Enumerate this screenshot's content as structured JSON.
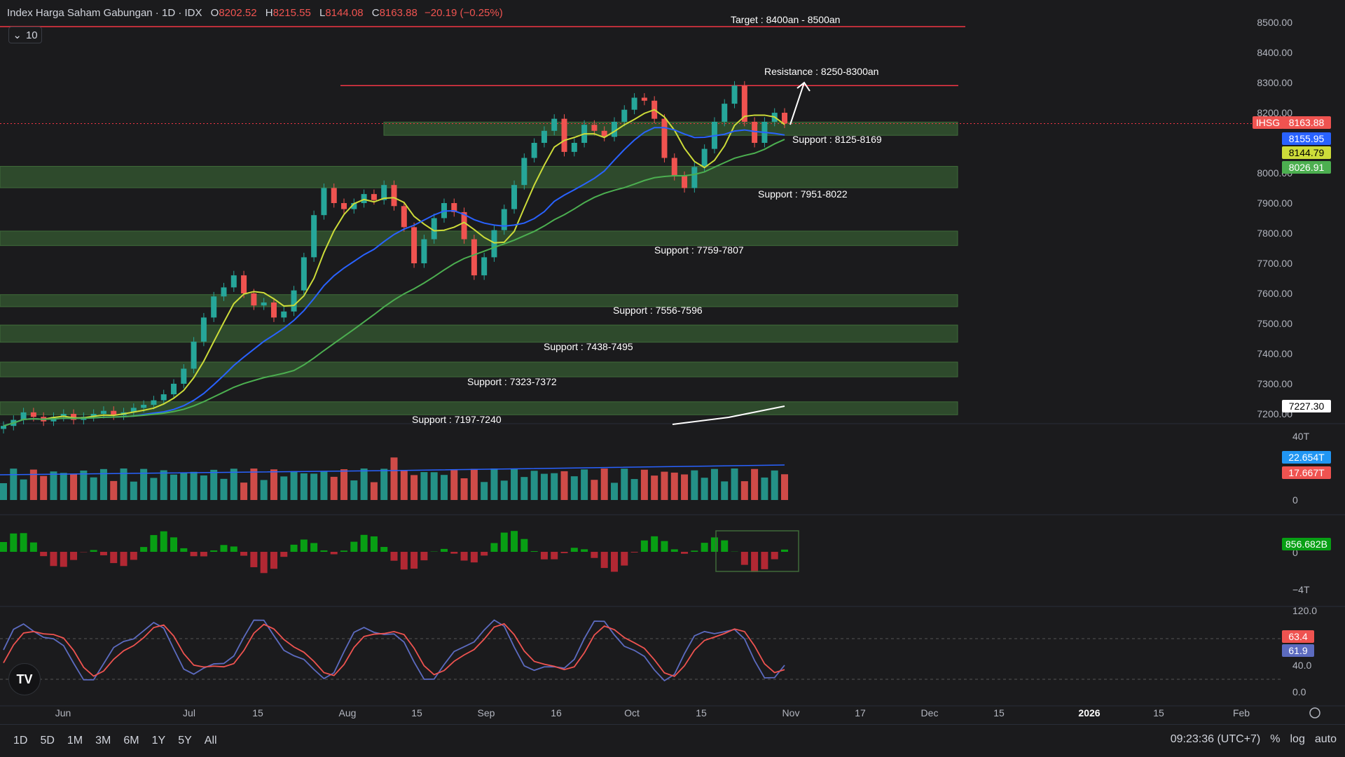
{
  "header": {
    "title": "Index Harga Saham Gabungan · 1D · IDX",
    "open_label": "O",
    "open": "8202.52",
    "high_label": "H",
    "high": "8215.55",
    "low_label": "L",
    "low": "8144.08",
    "close_label": "C",
    "close": "8163.88",
    "change": "−20.19 (−0.25%)",
    "collapse_value": "10"
  },
  "colors": {
    "up": "#26a69a",
    "down": "#ef5350",
    "ma_fast": "#cddc39",
    "ma_mid": "#2962ff",
    "ma_slow": "#4caf50",
    "zone": "#2e4a2c",
    "level_line": "#f23645",
    "background": "#1b1b1d"
  },
  "price_axis": {
    "ticks": [
      "8500.00",
      "8400.00",
      "8300.00",
      "8200.00",
      "8000.00",
      "7900.00",
      "7800.00",
      "7700.00",
      "7600.00",
      "7500.00",
      "7400.00",
      "7300.00",
      "7200.00"
    ]
  },
  "badges": {
    "ticker": "IHSG",
    "last": "8163.88",
    "ma_mid": "8155.95",
    "ma_fast": "8144.79",
    "ma_slow": "8026.91",
    "other": "7227.30",
    "volume_a": "22.654T",
    "volume_b": "17.667T",
    "flow": "856.682B",
    "osc_a": "63.4",
    "osc_b": "61.9"
  },
  "annotations": {
    "target": "Target : 8400an - 8500an",
    "resistance": "Resistance : 8250-8300an",
    "support_1": "Support : 8125-8169",
    "support_2": "Support : 7951-8022",
    "support_3": "Support : 7759-7807",
    "support_4": "Support : 7556-7596",
    "support_5": "Support : 7438-7495",
    "support_6": "Support : 7323-7372",
    "support_7": "Support : 7197-7240"
  },
  "volume_axis": [
    "40T",
    "0"
  ],
  "flow_axis": [
    "0",
    "−4T"
  ],
  "osc_axis": [
    "120.0",
    "40.0",
    "0.0"
  ],
  "time_axis": [
    "Jun",
    "Jul",
    "15",
    "Aug",
    "15",
    "Sep",
    "16",
    "Oct",
    "15",
    "Nov",
    "17",
    "Dec",
    "15",
    "2026",
    "15",
    "Feb"
  ],
  "bottom": {
    "ranges": [
      "1D",
      "5D",
      "1M",
      "3M",
      "6M",
      "1Y",
      "5Y",
      "All"
    ],
    "time": "09:23:36 (UTC+7)",
    "percent": "%",
    "log": "log",
    "auto": "auto"
  },
  "chart_data": {
    "type": "candlestick",
    "title": "Index Harga Saham Gabungan · 1D · IDX",
    "levels": {
      "target": [
        8400,
        8500
      ],
      "resistance": [
        8250,
        8300
      ],
      "support_zones": [
        [
          8125,
          8169
        ],
        [
          7951,
          8022
        ],
        [
          7759,
          7807
        ],
        [
          7556,
          7596
        ],
        [
          7438,
          7495
        ],
        [
          7323,
          7372
        ],
        [
          7197,
          7240
        ]
      ]
    },
    "x_start": "Jun",
    "x_end": "Nov",
    "closes_sampled": [
      7160,
      7180,
      7205,
      7190,
      7175,
      7190,
      7200,
      7180,
      7190,
      7200,
      7210,
      7195,
      7205,
      7220,
      7230,
      7245,
      7265,
      7300,
      7350,
      7440,
      7520,
      7590,
      7620,
      7660,
      7600,
      7560,
      7570,
      7520,
      7540,
      7610,
      7720,
      7860,
      7950,
      7900,
      7880,
      7900,
      7930,
      7910,
      7960,
      7890,
      7820,
      7700,
      7780,
      7850,
      7900,
      7870,
      7780,
      7660,
      7720,
      7810,
      7880,
      7960,
      8050,
      8100,
      8140,
      8180,
      8070,
      8100,
      8160,
      8140,
      8120,
      8170,
      8210,
      8250,
      8240,
      8180,
      8050,
      7990,
      7950,
      8020,
      8080,
      8170,
      8230,
      8290,
      8170,
      8100,
      8170,
      8200,
      8164
    ],
    "oscillator": {
      "series": [
        {
          "name": "fast"
        },
        {
          "name": "slow"
        }
      ],
      "ylim": [
        0,
        120
      ]
    }
  }
}
